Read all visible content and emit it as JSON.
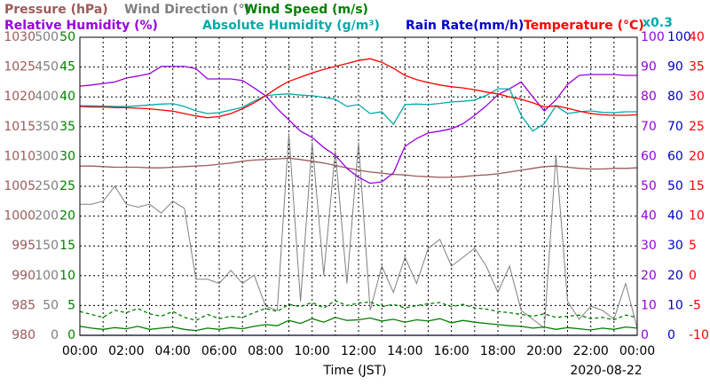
{
  "chart_data": {
    "type": "line",
    "xlabel": "Time (JST)",
    "date": "2020-08-22",
    "scale_note": "x0.3",
    "grid": true,
    "xlim": [
      0,
      24
    ],
    "xticks": [
      {
        "value": 0,
        "label": "00:00"
      },
      {
        "value": 2,
        "label": "02:00"
      },
      {
        "value": 4,
        "label": "04:00"
      },
      {
        "value": 6,
        "label": "06:00"
      },
      {
        "value": 8,
        "label": "08:00"
      },
      {
        "value": 10,
        "label": "10:00"
      },
      {
        "value": 12,
        "label": "12:00"
      },
      {
        "value": 14,
        "label": "14:00"
      },
      {
        "value": 16,
        "label": "16:00"
      },
      {
        "value": 18,
        "label": "18:00"
      },
      {
        "value": 20,
        "label": "20:00"
      },
      {
        "value": 22,
        "label": "22:00"
      },
      {
        "value": 24,
        "label": "00:00"
      }
    ],
    "minor_xticks": [
      1,
      3,
      5,
      7,
      9,
      11,
      13,
      15,
      17,
      19,
      21,
      23
    ],
    "x": [
      0,
      0.5,
      1,
      1.5,
      2,
      2.5,
      3,
      3.5,
      4,
      4.5,
      5,
      5.5,
      6,
      6.5,
      7,
      7.5,
      8,
      8.5,
      9,
      9.5,
      10,
      10.5,
      11,
      11.5,
      12,
      12.5,
      13,
      13.5,
      14,
      14.5,
      15,
      15.5,
      16,
      16.5,
      17,
      17.5,
      18,
      18.5,
      19,
      19.5,
      20,
      20.5,
      21,
      21.5,
      22,
      22.5,
      23,
      23.5,
      24
    ],
    "axes": [
      {
        "side": "left",
        "color": "#9c5a5a",
        "ylim": [
          980,
          1030
        ],
        "yticks": [
          980,
          985,
          990,
          995,
          1000,
          1005,
          1010,
          1015,
          1020,
          1025,
          1030
        ]
      },
      {
        "side": "left",
        "color": "#808080",
        "ylim": [
          0,
          500
        ],
        "yticks": [
          0,
          50,
          100,
          150,
          200,
          250,
          300,
          350,
          400,
          450,
          500
        ]
      },
      {
        "side": "left",
        "color": "#008000",
        "ylim": [
          0,
          50
        ],
        "yticks": [
          0,
          5,
          10,
          15,
          20,
          25,
          30,
          35,
          40,
          45,
          50
        ]
      },
      {
        "side": "right",
        "color": "#9900dd",
        "ylim": [
          0,
          100
        ],
        "yticks": [
          0,
          10,
          20,
          30,
          40,
          50,
          60,
          70,
          80,
          90,
          100
        ]
      },
      {
        "side": "right",
        "color": "#0000cc",
        "ylim": [
          0,
          100
        ],
        "yticks": [
          0,
          10,
          20,
          30,
          40,
          50,
          60,
          70,
          80,
          90,
          100
        ]
      },
      {
        "side": "right",
        "color": "#ff0000",
        "ylim": [
          -10,
          40
        ],
        "yticks": [
          -10,
          -5,
          0,
          5,
          10,
          15,
          20,
          25,
          30,
          35,
          40
        ]
      }
    ],
    "series": [
      {
        "name": "Wind Direction (°)",
        "color": "#808080",
        "axis": 1,
        "values": [
          220,
          220,
          225,
          250,
          220,
          215,
          220,
          205,
          225,
          213,
          94,
          94,
          87,
          109,
          87,
          101,
          49,
          42,
          339,
          57,
          324,
          101,
          310,
          87,
          324,
          42,
          116,
          72,
          131,
          87,
          146,
          161,
          116,
          131,
          146,
          116,
          72,
          116,
          42,
          27,
          12,
          302,
          57,
          27,
          49,
          42,
          27,
          87,
          12
        ]
      },
      {
        "name": "Pressure (hPa)",
        "color": "#9c5a5a",
        "axis": 0,
        "values": [
          1008.4,
          1008.4,
          1008.3,
          1008.2,
          1008.2,
          1008.2,
          1008.1,
          1008.1,
          1008.2,
          1008.3,
          1008.4,
          1008.5,
          1008.7,
          1008.9,
          1009.2,
          1009.4,
          1009.5,
          1009.6,
          1009.7,
          1009.5,
          1009.2,
          1008.9,
          1008.5,
          1008.1,
          1007.7,
          1007.4,
          1007.2,
          1007.0,
          1006.9,
          1006.7,
          1006.6,
          1006.5,
          1006.5,
          1006.6,
          1006.8,
          1006.9,
          1007.1,
          1007.4,
          1007.7,
          1008.0,
          1008.3,
          1008.4,
          1008.2,
          1008.0,
          1007.9,
          1007.9,
          1008.0,
          1008.0,
          1008.1
        ]
      },
      {
        "name": "Wind Speed (m/s)",
        "color": "#008000",
        "axis": 2,
        "values": [
          1.5,
          1.2,
          1.0,
          1.3,
          1.1,
          1.5,
          1.0,
          1.2,
          1.4,
          1.0,
          0.8,
          1.2,
          1.0,
          1.3,
          1.1,
          1.5,
          1.8,
          1.6,
          2.5,
          2.0,
          2.8,
          2.2,
          3.0,
          2.5,
          2.6,
          2.9,
          2.4,
          2.7,
          2.2,
          2.6,
          2.4,
          2.8,
          2.1,
          2.5,
          2.2,
          2.0,
          1.8,
          1.6,
          1.5,
          1.2,
          1.4,
          1.0,
          1.3,
          1.1,
          0.9,
          1.2,
          1.0,
          1.4,
          1.2
        ]
      },
      {
        "color": "#008000",
        "axis": 2,
        "dash": true,
        "values": [
          4.0,
          3.5,
          3.0,
          4.2,
          3.8,
          4.5,
          3.6,
          3.2,
          4.0,
          3.0,
          2.5,
          3.5,
          2.8,
          3.2,
          3.0,
          3.8,
          4.5,
          4.0,
          5.2,
          4.8,
          5.5,
          4.6,
          5.8,
          5.0,
          5.4,
          5.6,
          4.8,
          5.2,
          4.6,
          5.0,
          5.3,
          5.5,
          4.8,
          5.2,
          4.6,
          4.4,
          4.0,
          3.8,
          3.5,
          3.2,
          3.6,
          3.0,
          3.2,
          3.4,
          2.8,
          3.0,
          2.6,
          3.4,
          3.0
        ]
      },
      {
        "name": "Relative Humidity (%)",
        "color": "#9900dd",
        "axis": 3,
        "values": [
          83.6,
          84,
          84.5,
          85,
          86.3,
          87,
          87.8,
          90.2,
          90.2,
          90.2,
          89.5,
          86,
          86,
          86,
          85.5,
          83,
          80.4,
          76,
          72.3,
          68.5,
          66.4,
          63,
          60.4,
          56,
          53,
          51,
          51.5,
          54.5,
          63.4,
          66,
          67.9,
          68.5,
          69.3,
          71,
          73.8,
          77,
          80.7,
          82.7,
          85,
          80,
          75.3,
          79,
          84.2,
          87.2,
          87.5,
          87.5,
          87.5,
          87.2,
          87.2
        ]
      },
      {
        "name": "Absolute Humidity (g/m³)",
        "color": "#00aaaa",
        "axis": 3,
        "values": [
          77,
          77,
          76.9,
          76.8,
          76.8,
          77,
          77.3,
          77.6,
          77.7,
          76.8,
          75.3,
          74.4,
          74.7,
          75.6,
          76.5,
          78.6,
          80.4,
          80.8,
          81,
          80.6,
          80.4,
          79.8,
          79.2,
          76.8,
          77.4,
          74.4,
          75,
          70.8,
          77.4,
          77.6,
          77.4,
          77.8,
          78.3,
          78.5,
          78.9,
          80.5,
          82.7,
          82.7,
          73.8,
          68.5,
          71,
          77,
          74.4,
          75,
          75.3,
          74.8,
          74.7,
          75,
          75
        ]
      },
      {
        "name": "Rain Rate(mm/h)",
        "color": "#0000cc",
        "axis": 4,
        "values": [
          0,
          0,
          0,
          0,
          0,
          0,
          0,
          0,
          0,
          0,
          0,
          0,
          0,
          0,
          0,
          0,
          0,
          0,
          0,
          0,
          0,
          0,
          0,
          0,
          0,
          0,
          0,
          0,
          0,
          0,
          0,
          0,
          0,
          0,
          0,
          0,
          0,
          0,
          0,
          0,
          0,
          0,
          0,
          0,
          0,
          0,
          0,
          0,
          0
        ]
      },
      {
        "name": "Temperature (°C)",
        "color": "#ff0000",
        "axis": 5,
        "values": [
          28.4,
          28.3,
          28.3,
          28.2,
          28.2,
          28.1,
          28.0,
          27.8,
          27.6,
          27.2,
          26.8,
          26.5,
          26.7,
          27.2,
          28.0,
          29.0,
          30.2,
          31.5,
          32.6,
          33.3,
          34.0,
          34.6,
          35.1,
          35.6,
          36.1,
          36.4,
          35.8,
          34.8,
          33.6,
          32.9,
          32.4,
          32.0,
          31.7,
          31.5,
          31.2,
          30.8,
          30.5,
          30.0,
          29.6,
          29.0,
          28.3,
          28.5,
          28.1,
          27.6,
          27.2,
          27.0,
          26.9,
          26.9,
          27.0
        ]
      }
    ]
  }
}
